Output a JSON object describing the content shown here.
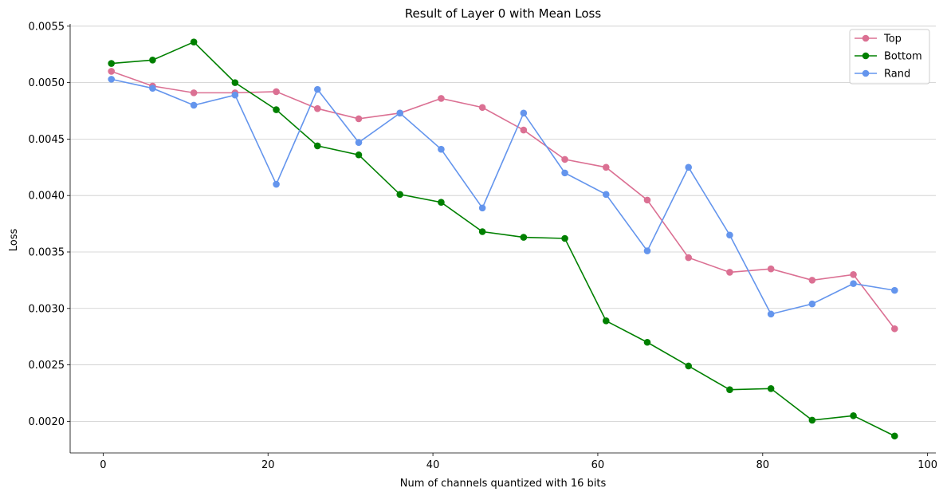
{
  "chart_data": {
    "type": "line",
    "title": "Result of Layer 0 with Mean Loss",
    "xlabel": "Num of channels quantized with 16 bits",
    "ylabel": "Loss",
    "xlim": [
      -4,
      101
    ],
    "ylim": [
      0.00172,
      0.00552
    ],
    "xticks": [
      0,
      20,
      40,
      60,
      80,
      100
    ],
    "xtick_labels": [
      "0",
      "20",
      "40",
      "60",
      "80",
      "100"
    ],
    "yticks": [
      0.002,
      0.0025,
      0.003,
      0.0035,
      0.004,
      0.0045,
      0.005,
      0.0055
    ],
    "ytick_labels": [
      "0.0020",
      "0.0025",
      "0.0030",
      "0.0035",
      "0.0040",
      "0.0045",
      "0.0050",
      "0.0055"
    ],
    "grid": "horizontal",
    "legend_position": "top-right",
    "x": [
      1,
      6,
      11,
      16,
      21,
      26,
      31,
      36,
      41,
      46,
      51,
      56,
      61,
      66,
      71,
      76,
      81,
      86,
      91,
      96
    ],
    "series": [
      {
        "name": "Top",
        "color": "#db7093",
        "values": [
          0.0051,
          0.00497,
          0.00491,
          0.00491,
          0.00492,
          0.00477,
          0.00468,
          0.00473,
          0.00486,
          0.00478,
          0.00458,
          0.00432,
          0.00425,
          0.00396,
          0.00345,
          0.00332,
          0.00335,
          0.00325,
          0.0033,
          0.00282
        ]
      },
      {
        "name": "Bottom",
        "color": "#008000",
        "values": [
          0.00517,
          0.0052,
          0.00536,
          0.005,
          0.00476,
          0.00444,
          0.00436,
          0.00401,
          0.00394,
          0.00368,
          0.00363,
          0.00362,
          0.00289,
          0.0027,
          0.00249,
          0.00228,
          0.00229,
          0.00201,
          0.00205,
          0.00187
        ]
      },
      {
        "name": "Rand",
        "color": "#6495ed",
        "values": [
          0.00503,
          0.00495,
          0.0048,
          0.00489,
          0.0041,
          0.00494,
          0.00447,
          0.00473,
          0.00441,
          0.00389,
          0.00473,
          0.0042,
          0.00401,
          0.00351,
          0.00425,
          0.00365,
          0.00295,
          0.00304,
          0.00322,
          0.00316
        ]
      }
    ]
  }
}
